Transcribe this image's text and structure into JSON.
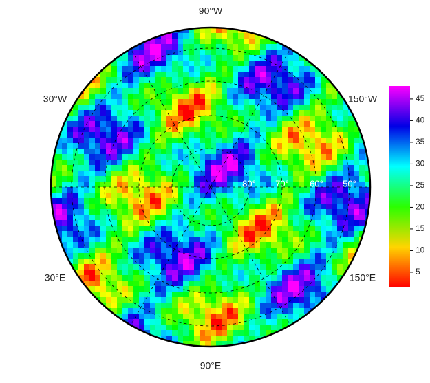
{
  "map": {
    "lon_labels": [
      "90°W",
      "30°W",
      "150°W",
      "30°E",
      "150°E",
      "90°E"
    ],
    "lat_labels": [
      "80°",
      "70°",
      "60°",
      "50°"
    ],
    "colorbar": {
      "range": [
        1.5,
        48
      ],
      "ticks": [
        5,
        10,
        15,
        20,
        25,
        30,
        35,
        40,
        45
      ]
    }
  }
}
